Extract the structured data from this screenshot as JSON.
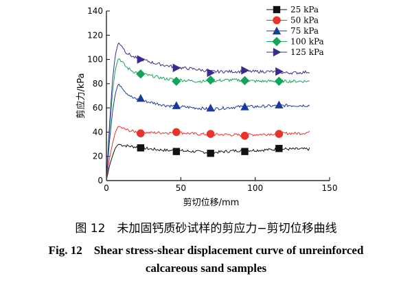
{
  "caption": {
    "cn": "图 12　未加固钙质砂试样的剪应力−剪切位移曲线",
    "en_line1": "Fig. 12　Shear stress-shear displacement curve of unreinforced",
    "en_line2": "calcareous sand samples"
  },
  "chart_data": {
    "type": "line",
    "xlabel": "剪切位移/mm",
    "ylabel": "剪应力/kPa",
    "xlim": [
      0,
      150
    ],
    "ylim": [
      0,
      140
    ],
    "xticks": [
      0,
      50,
      100,
      150
    ],
    "yticks": [
      0,
      20,
      40,
      60,
      80,
      100,
      120,
      140
    ],
    "grid": false,
    "legend_position": "top-right",
    "series": [
      {
        "name": "25 kPa",
        "color": "#111111",
        "marker": "square",
        "curve": [
          [
            0,
            0
          ],
          [
            2,
            12
          ],
          [
            4,
            20
          ],
          [
            6,
            27
          ],
          [
            8,
            30
          ],
          [
            12,
            29
          ],
          [
            18,
            28
          ],
          [
            24,
            27
          ],
          [
            30,
            26
          ],
          [
            40,
            25
          ],
          [
            50,
            24.5
          ],
          [
            60,
            24
          ],
          [
            70,
            23
          ],
          [
            80,
            24
          ],
          [
            90,
            25
          ],
          [
            100,
            25
          ],
          [
            110,
            25.5
          ],
          [
            118,
            26
          ],
          [
            125,
            26
          ],
          [
            137,
            26
          ]
        ],
        "markers": [
          [
            23,
            27
          ],
          [
            47,
            24
          ],
          [
            70,
            22.5
          ],
          [
            93,
            24
          ],
          [
            116,
            26.5
          ]
        ]
      },
      {
        "name": "50 kPa",
        "color": "#e8332a",
        "marker": "circle",
        "curve": [
          [
            0,
            0
          ],
          [
            2,
            18
          ],
          [
            4,
            30
          ],
          [
            6,
            40
          ],
          [
            8,
            45
          ],
          [
            11,
            43
          ],
          [
            16,
            41
          ],
          [
            22,
            40
          ],
          [
            30,
            39.5
          ],
          [
            40,
            39.5
          ],
          [
            50,
            39.5
          ],
          [
            60,
            38.5
          ],
          [
            70,
            38
          ],
          [
            80,
            38
          ],
          [
            90,
            37.5
          ],
          [
            100,
            38
          ],
          [
            110,
            38.5
          ],
          [
            120,
            39
          ],
          [
            130,
            39
          ],
          [
            137,
            40
          ]
        ],
        "markers": [
          [
            23,
            39
          ],
          [
            47,
            40
          ],
          [
            70,
            38.5
          ],
          [
            93,
            37
          ],
          [
            116,
            38.5
          ]
        ]
      },
      {
        "name": "75 kPa",
        "color": "#1a3a9c",
        "marker": "triangle",
        "curve": [
          [
            0,
            0
          ],
          [
            2,
            32
          ],
          [
            4,
            56
          ],
          [
            6,
            72
          ],
          [
            8,
            80
          ],
          [
            10,
            78
          ],
          [
            13,
            73
          ],
          [
            18,
            68
          ],
          [
            24,
            66
          ],
          [
            32,
            64
          ],
          [
            40,
            62
          ],
          [
            50,
            61
          ],
          [
            60,
            60
          ],
          [
            70,
            59
          ],
          [
            80,
            60
          ],
          [
            90,
            61
          ],
          [
            100,
            61
          ],
          [
            110,
            61.5
          ],
          [
            120,
            62
          ],
          [
            130,
            62
          ],
          [
            137,
            62
          ]
        ],
        "markers": [
          [
            23,
            68
          ],
          [
            47,
            62
          ],
          [
            70,
            60
          ],
          [
            93,
            61
          ],
          [
            116,
            62.5
          ]
        ]
      },
      {
        "name": "100 kPa",
        "color": "#10a558",
        "marker": "diamond",
        "curve": [
          [
            0,
            0
          ],
          [
            2,
            40
          ],
          [
            4,
            72
          ],
          [
            6,
            92
          ],
          [
            8,
            101
          ],
          [
            10,
            99
          ],
          [
            13,
            94
          ],
          [
            18,
            90
          ],
          [
            24,
            88
          ],
          [
            32,
            86
          ],
          [
            40,
            84
          ],
          [
            50,
            83
          ],
          [
            60,
            82
          ],
          [
            70,
            82
          ],
          [
            80,
            83
          ],
          [
            90,
            83
          ],
          [
            100,
            82
          ],
          [
            110,
            82
          ],
          [
            120,
            82
          ],
          [
            130,
            82
          ],
          [
            137,
            82
          ]
        ],
        "markers": [
          [
            23,
            88
          ],
          [
            47,
            82
          ],
          [
            70,
            83
          ],
          [
            93,
            82.5
          ],
          [
            116,
            82
          ]
        ]
      },
      {
        "name": "125 kPa",
        "color": "#3b2a8c",
        "marker": "triangle-right",
        "curve": [
          [
            0,
            0
          ],
          [
            2,
            45
          ],
          [
            4,
            82
          ],
          [
            6,
            104
          ],
          [
            8,
            114
          ],
          [
            10,
            112
          ],
          [
            13,
            106
          ],
          [
            18,
            102
          ],
          [
            24,
            100
          ],
          [
            32,
            97
          ],
          [
            40,
            95
          ],
          [
            50,
            93
          ],
          [
            60,
            92
          ],
          [
            70,
            90
          ],
          [
            80,
            90
          ],
          [
            90,
            90
          ],
          [
            100,
            90
          ],
          [
            110,
            90
          ],
          [
            120,
            89
          ],
          [
            130,
            89
          ],
          [
            137,
            90
          ]
        ],
        "markers": [
          [
            23,
            100
          ],
          [
            47,
            93
          ],
          [
            70,
            89
          ],
          [
            93,
            91
          ],
          [
            116,
            90
          ]
        ]
      }
    ]
  }
}
